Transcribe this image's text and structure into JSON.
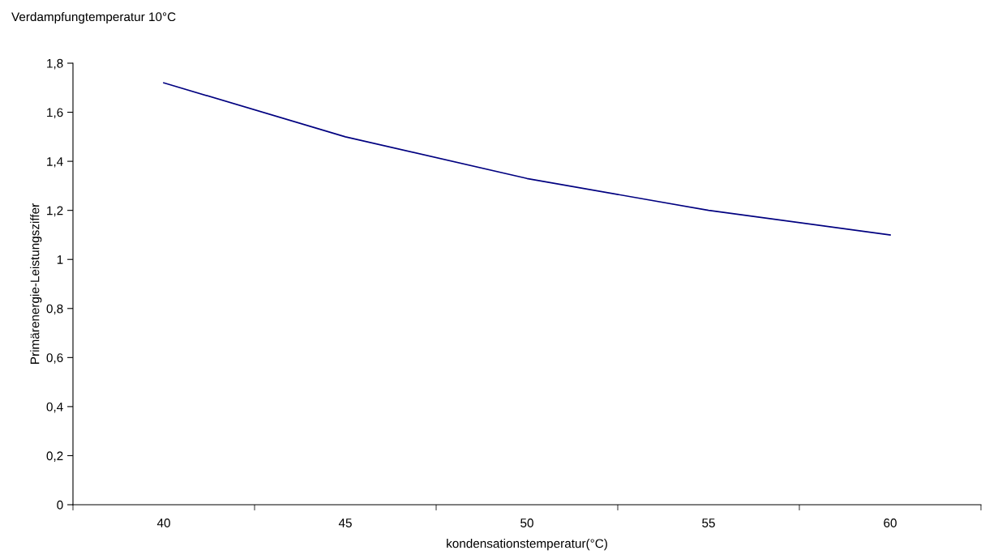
{
  "chart_data": {
    "type": "line",
    "title": "Verdampfungtemperatur 10°C",
    "xlabel": "kondensationstemperatur(°C)",
    "ylabel": "Primärenergie-Leistungsziffer",
    "categories": [
      "40",
      "45",
      "50",
      "55",
      "60"
    ],
    "series": [
      {
        "color": "#000080",
        "values": [
          1.72,
          1.5,
          1.33,
          1.2,
          1.1
        ]
      }
    ],
    "ylim": [
      0,
      1.8
    ],
    "yticks": [
      0,
      {
        "value": 0.2,
        "label": "0,2"
      },
      {
        "value": 0.4,
        "label": "0,4"
      },
      {
        "value": 0.6,
        "label": "0,6"
      },
      {
        "value": 0.8,
        "label": "0,8"
      },
      1,
      {
        "value": 1.2,
        "label": "1,2"
      },
      {
        "value": 1.4,
        "label": "1,4"
      },
      {
        "value": 1.6,
        "label": "1,6"
      },
      {
        "value": 1.8,
        "label": "1,8"
      }
    ],
    "grid": false,
    "legend": false,
    "marker": "none",
    "line_style": "solid"
  }
}
